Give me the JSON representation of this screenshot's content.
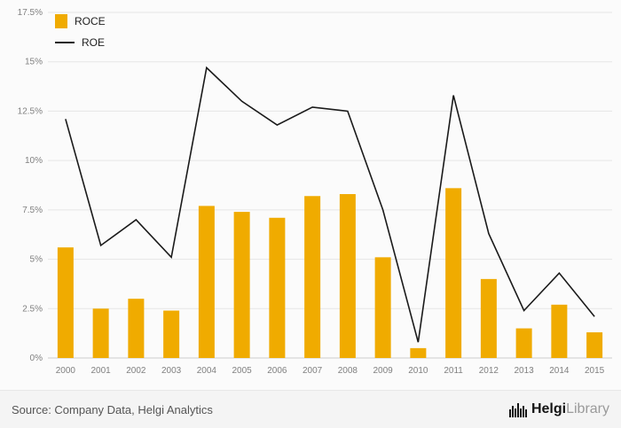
{
  "legend": {
    "roce_label": "ROCE",
    "roe_label": "ROE"
  },
  "footer": {
    "source": "Source: Company Data, Helgi Analytics",
    "brand_primary": "Helgi",
    "brand_secondary": "Library"
  },
  "colors": {
    "bar": "#F0AB00",
    "line": "#1a1a1a",
    "grid": "#e6e6e6",
    "baseline": "#cccccc",
    "axis_text": "#808080"
  },
  "chart_data": {
    "type": "bar",
    "categories": [
      "2000",
      "2001",
      "2002",
      "2003",
      "2004",
      "2005",
      "2006",
      "2007",
      "2008",
      "2009",
      "2010",
      "2011",
      "2012",
      "2013",
      "2014",
      "2015"
    ],
    "series": [
      {
        "name": "ROCE",
        "type": "bar",
        "color": "#F0AB00",
        "values": [
          5.6,
          2.5,
          3.0,
          2.4,
          7.7,
          7.4,
          7.1,
          8.2,
          8.3,
          5.1,
          0.5,
          8.6,
          4.0,
          1.5,
          2.7,
          1.3
        ]
      },
      {
        "name": "ROE",
        "type": "line",
        "color": "#1a1a1a",
        "values": [
          12.1,
          5.7,
          7.0,
          5.1,
          14.7,
          13.0,
          11.8,
          12.7,
          12.5,
          7.5,
          0.8,
          13.3,
          6.3,
          2.4,
          4.3,
          2.1
        ]
      }
    ],
    "title": "",
    "xlabel": "",
    "ylabel": "",
    "ylim": [
      0,
      17.5
    ],
    "yticks": [
      "0%",
      "2.5%",
      "5%",
      "7.5%",
      "10%",
      "12.5%",
      "15%",
      "17.5%"
    ],
    "grid": true,
    "legend_position": "top-left"
  }
}
